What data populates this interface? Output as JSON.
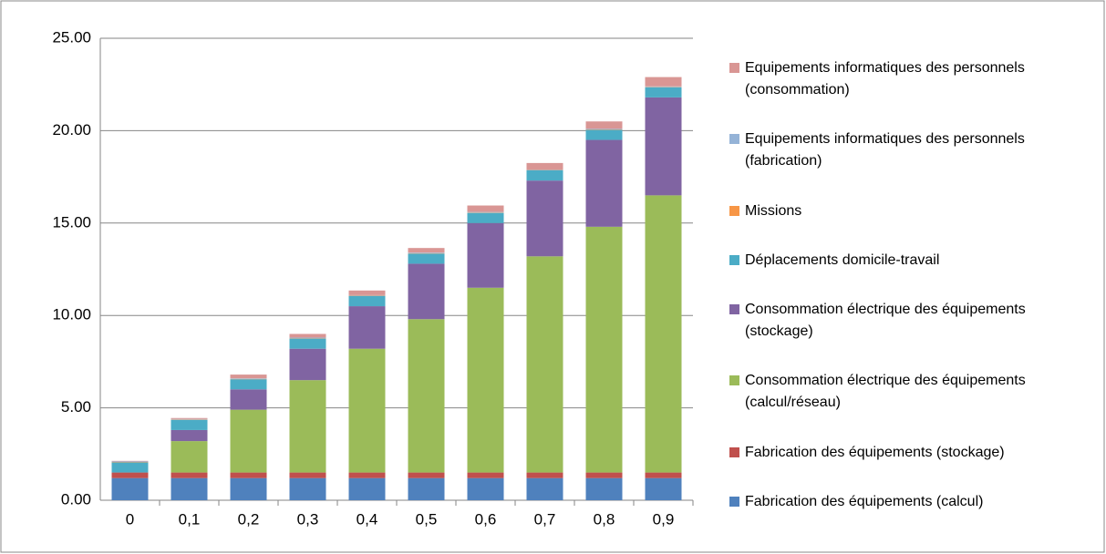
{
  "chart_data": {
    "type": "stacked-bar",
    "categories": [
      "0",
      "0,1",
      "0,2",
      "0,3",
      "0,4",
      "0,5",
      "0,6",
      "0,7",
      "0,8",
      "0,9"
    ],
    "series": [
      {
        "name": "Fabrication des équipements (calcul)",
        "color": "#4f81bd",
        "values": [
          1.2,
          1.2,
          1.2,
          1.2,
          1.2,
          1.2,
          1.2,
          1.2,
          1.2,
          1.2
        ]
      },
      {
        "name": "Fabrication des équipements (stockage)",
        "color": "#c0504d",
        "values": [
          0.3,
          0.3,
          0.3,
          0.3,
          0.3,
          0.3,
          0.3,
          0.3,
          0.3,
          0.3
        ]
      },
      {
        "name": "Consommation électrique des équipements (calcul/réseau)",
        "color": "#9bbb59",
        "values": [
          0,
          1.7,
          3.4,
          5.0,
          6.7,
          8.3,
          10.0,
          11.7,
          13.3,
          15.0
        ]
      },
      {
        "name": "Consommation électrique des équipements (stockage)",
        "color": "#8064a2",
        "values": [
          0,
          0.6,
          1.1,
          1.7,
          2.3,
          3.0,
          3.5,
          4.1,
          4.7,
          5.3
        ]
      },
      {
        "name": "Déplacements domicile-travail",
        "color": "#4bacc6",
        "values": [
          0.55,
          0.55,
          0.55,
          0.55,
          0.55,
          0.55,
          0.55,
          0.55,
          0.55,
          0.55
        ]
      },
      {
        "name": "Missions",
        "color": "#f79646",
        "values": [
          0.02,
          0.02,
          0.02,
          0.02,
          0.02,
          0.02,
          0.02,
          0.02,
          0.02,
          0.02
        ]
      },
      {
        "name": "Equipements informatiques des personnels (fabrication)",
        "color": "#95b3d7",
        "values": [
          0.03,
          0.03,
          0.03,
          0.03,
          0.03,
          0.03,
          0.03,
          0.03,
          0.03,
          0.03
        ]
      },
      {
        "name": "Equipements informatiques des personnels (consommation)",
        "color": "#d99694",
        "values": [
          0.03,
          0.05,
          0.2,
          0.2,
          0.25,
          0.25,
          0.35,
          0.35,
          0.4,
          0.5
        ]
      }
    ],
    "ylim": [
      0,
      25
    ],
    "yticks": [
      {
        "value": 0,
        "label": "0.00"
      },
      {
        "value": 5,
        "label": "5.00"
      },
      {
        "value": 10,
        "label": "10.00"
      },
      {
        "value": 15,
        "label": "15.00"
      },
      {
        "value": 20,
        "label": "20.00"
      },
      {
        "value": 25,
        "label": "25.00"
      }
    ],
    "grid": true
  }
}
